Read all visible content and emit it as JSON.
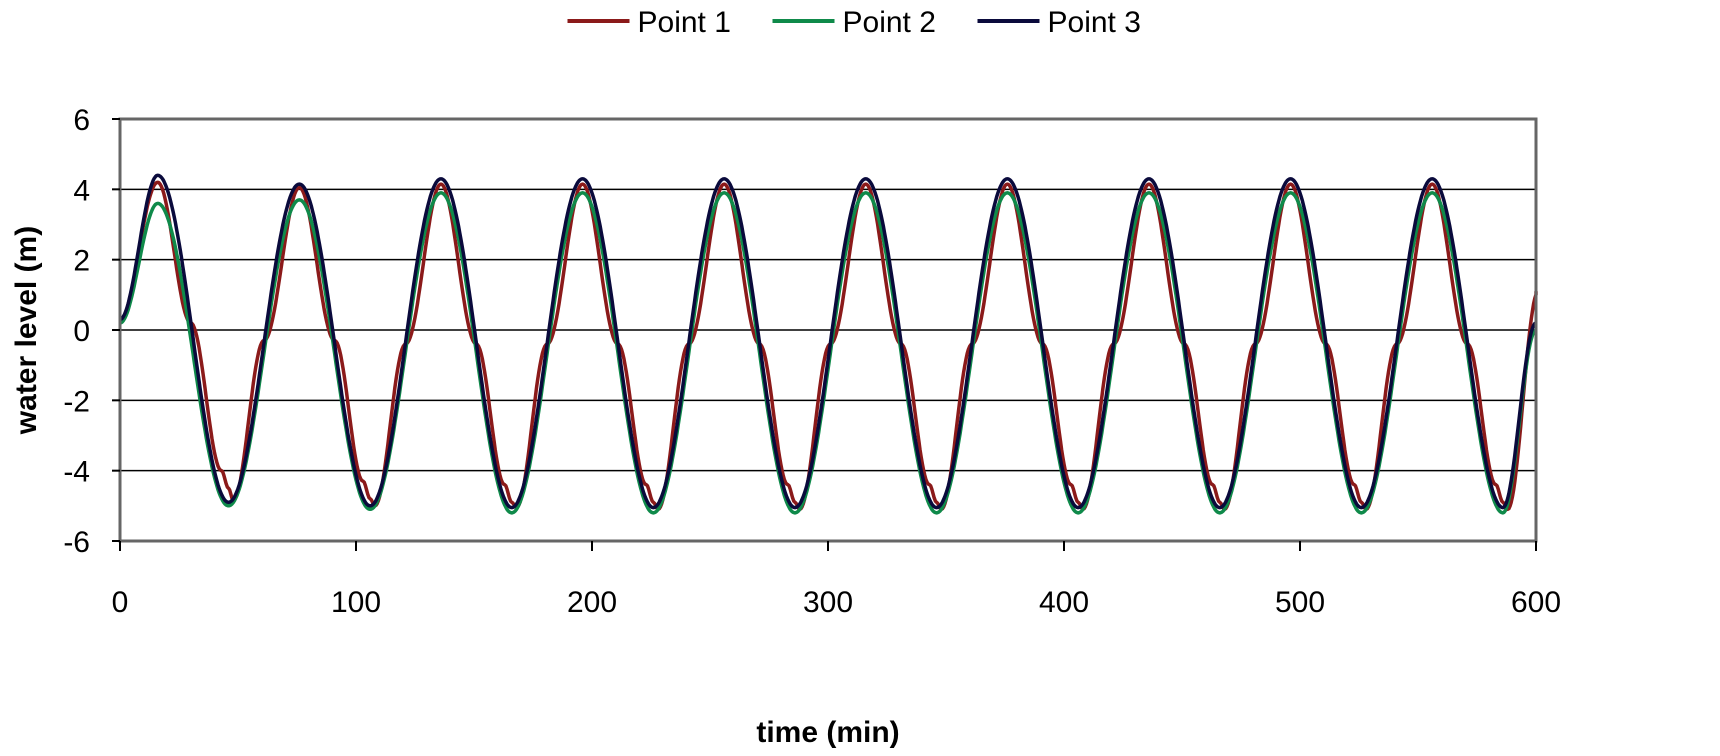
{
  "chart_data": {
    "type": "line",
    "title": "",
    "xlabel": "time (min)",
    "ylabel": "water level (m)",
    "xlim": [
      0,
      600
    ],
    "ylim": [
      -6,
      6
    ],
    "x_ticks": [
      0,
      100,
      200,
      300,
      400,
      500,
      600
    ],
    "y_ticks": [
      6,
      4,
      2,
      0,
      -2,
      -4,
      -6
    ],
    "grid": "horizontal",
    "legend_position": "top",
    "series": [
      {
        "name": "Point 1",
        "color": "#8b1a1a",
        "x": [
          0,
          16,
          30,
          43,
          46,
          48,
          61,
          76,
          91,
          103,
          106,
          108,
          121,
          136,
          151,
          163,
          166,
          168,
          181,
          196,
          211,
          223,
          226,
          228,
          241,
          256,
          271,
          283,
          286,
          288,
          301,
          316,
          331,
          343,
          346,
          348,
          361,
          376,
          391,
          403,
          406,
          408,
          421,
          436,
          451,
          463,
          466,
          468,
          481,
          496,
          511,
          523,
          526,
          528,
          541,
          556,
          571,
          583,
          586,
          588,
          601
        ],
        "values": [
          0.3,
          4.2,
          0.2,
          -4.0,
          -4.5,
          -4.85,
          -0.3,
          4.05,
          -0.3,
          -4.3,
          -4.8,
          -5.0,
          -0.4,
          4.15,
          -0.4,
          -4.4,
          -4.9,
          -5.05,
          -0.4,
          4.15,
          -0.4,
          -4.4,
          -4.9,
          -5.1,
          -0.4,
          4.15,
          -0.4,
          -4.4,
          -4.9,
          -5.1,
          -0.4,
          4.15,
          -0.4,
          -4.4,
          -4.9,
          -5.1,
          -0.4,
          4.15,
          -0.4,
          -4.4,
          -4.9,
          -5.1,
          -0.4,
          4.15,
          -0.4,
          -4.4,
          -4.9,
          -5.1,
          -0.4,
          4.15,
          -0.4,
          -4.4,
          -4.9,
          -5.1,
          -0.4,
          4.15,
          -0.4,
          -4.4,
          -4.9,
          -5.1,
          1.1
        ]
      },
      {
        "name": "Point 2",
        "color": "#0f8a4a",
        "x": [
          0,
          16,
          46,
          76,
          106,
          136,
          166,
          196,
          226,
          256,
          286,
          316,
          346,
          376,
          406,
          436,
          466,
          496,
          526,
          556,
          586,
          600
        ],
        "values": [
          0.2,
          3.6,
          -5.0,
          3.7,
          -5.1,
          3.9,
          -5.2,
          3.9,
          -5.2,
          3.9,
          -5.2,
          3.9,
          -5.2,
          3.9,
          -5.2,
          3.9,
          -5.2,
          3.9,
          -5.2,
          3.9,
          -5.2,
          0.0
        ]
      },
      {
        "name": "Point 3",
        "color": "#0a0a3c",
        "x": [
          0,
          16,
          46,
          76,
          106,
          136,
          166,
          196,
          226,
          256,
          286,
          316,
          346,
          376,
          406,
          436,
          466,
          496,
          526,
          556,
          586,
          600
        ],
        "values": [
          0.3,
          4.4,
          -4.9,
          4.15,
          -5.0,
          4.3,
          -5.05,
          4.3,
          -5.05,
          4.3,
          -5.05,
          4.3,
          -5.05,
          4.3,
          -5.05,
          4.3,
          -5.05,
          4.3,
          -5.05,
          4.3,
          -5.05,
          0.2
        ]
      }
    ]
  }
}
